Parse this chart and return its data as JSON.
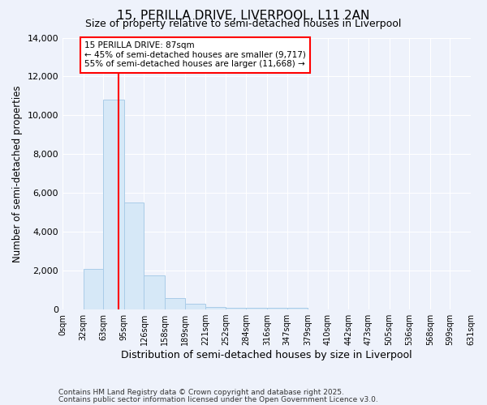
{
  "title": "15, PERILLA DRIVE, LIVERPOOL, L11 2AN",
  "subtitle": "Size of property relative to semi-detached houses in Liverpool",
  "xlabel": "Distribution of semi-detached houses by size in Liverpool",
  "ylabel": "Number of semi-detached properties",
  "bar_color": "#d6e8f7",
  "bar_edge_color": "#aacce8",
  "background_color": "#eef2fb",
  "grid_color": "white",
  "red_line_x": 87,
  "annotation_title": "15 PERILLA DRIVE: 87sqm",
  "annotation_line2": "← 45% of semi-detached houses are smaller (9,717)",
  "annotation_line3": "55% of semi-detached houses are larger (11,668) →",
  "annotation_box_color": "white",
  "annotation_border_color": "red",
  "bins": [
    0,
    32,
    63,
    95,
    126,
    158,
    189,
    221,
    252,
    284,
    316,
    347,
    379,
    410,
    442,
    473,
    505,
    536,
    568,
    599,
    631
  ],
  "counts": [
    0,
    2100,
    10800,
    5500,
    1750,
    600,
    300,
    130,
    90,
    90,
    90,
    90,
    0,
    0,
    0,
    0,
    0,
    0,
    0,
    0
  ],
  "ylim": [
    0,
    14000
  ],
  "yticks": [
    0,
    2000,
    4000,
    6000,
    8000,
    10000,
    12000,
    14000
  ],
  "title_fontsize": 11,
  "subtitle_fontsize": 9,
  "ylabel_fontsize": 8.5,
  "xlabel_fontsize": 9,
  "footnote1": "Contains HM Land Registry data © Crown copyright and database right 2025.",
  "footnote2": "Contains public sector information licensed under the Open Government Licence v3.0."
}
